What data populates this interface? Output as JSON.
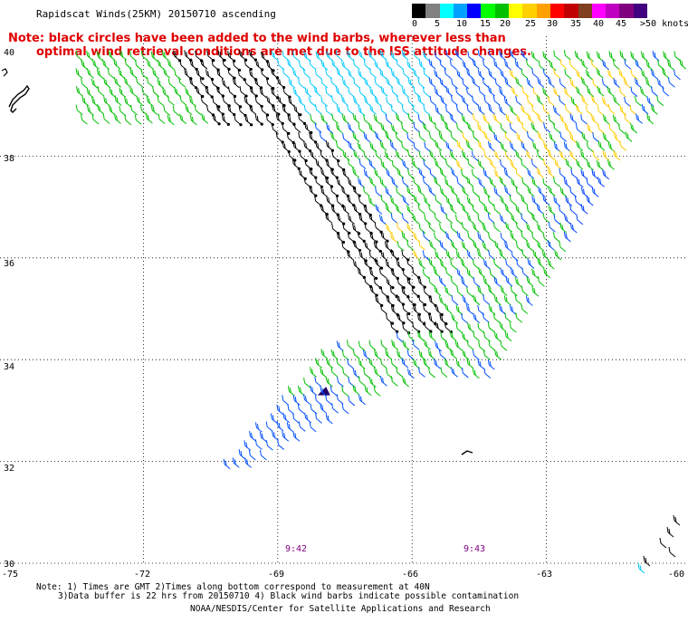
{
  "header": {
    "title": "Rapidscat Winds(25KM) 20150710 ascending"
  },
  "note": {
    "line1": "Note: black circles have been added to the wind barbs, wherever less than",
    "line2": "optimal wind retrieval conditions are met due to the ISS attitude changes."
  },
  "scale": {
    "labels": [
      "0",
      "5",
      "10",
      "15",
      "20",
      "25",
      "30",
      "35",
      "40",
      "45",
      ">50 knots"
    ],
    "colors": [
      "#000000",
      "#808080",
      "#00ffff",
      "#00a0ff",
      "#0000ff",
      "#00ff00",
      "#00c000",
      "#ffff00",
      "#ffd000",
      "#ffa000",
      "#ff0000",
      "#c00000",
      "#804020",
      "#ff00ff",
      "#c000c0",
      "#800080",
      "#400080"
    ]
  },
  "axes": {
    "lat_labels": [
      "40",
      "38",
      "36",
      "34",
      "32",
      "30"
    ],
    "lon_labels": [
      "-75",
      "-72",
      "-69",
      "-66",
      "-63",
      "-60"
    ]
  },
  "times": [
    "9:42",
    "9:43"
  ],
  "footer": {
    "line1": "Note: 1) Times are GMT 2)Times along bottom correspond to measurement at 40N",
    "line2": "3)Data buffer is 22 hrs from 20150710 4) Black wind barbs indicate possible contamination",
    "line3": "NOAA/NESDIS/Center for Satellite Applications and Research"
  }
}
